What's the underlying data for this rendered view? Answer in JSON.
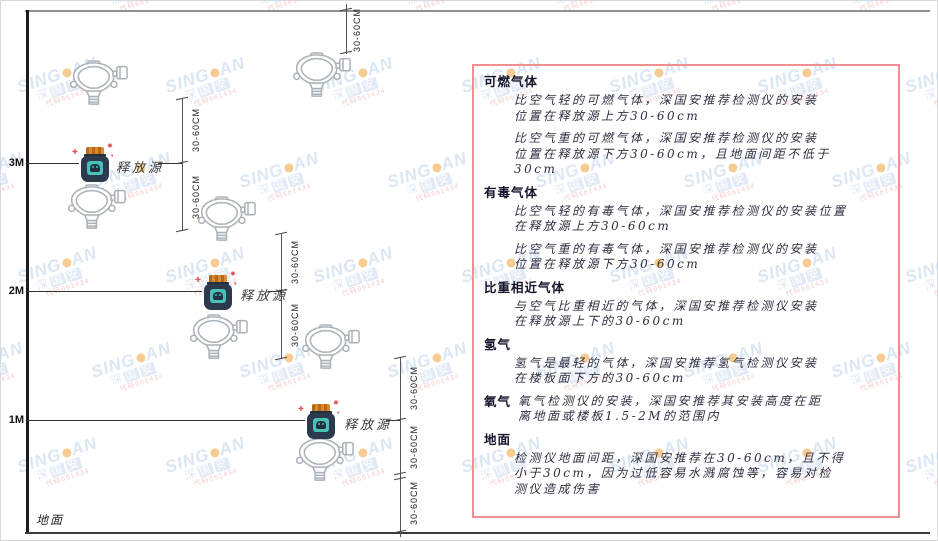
{
  "watermark": {
    "brand_prefix": "SING",
    "brand_suffix": "AN",
    "cjk": "深国安",
    "code": "代码661434",
    "blue": "#bfd3ea",
    "orange": "#f2a33c"
  },
  "colors": {
    "panel_border": "#ef8f8f",
    "jar_body": "#2c3a4e",
    "jar_cap": "#d88a2e",
    "jar_label": "#49c0ba",
    "detector_stroke": "#aab1b8"
  },
  "diagram": {
    "levels": [
      {
        "label": "3M"
      },
      {
        "label": "2M"
      },
      {
        "label": "1M"
      }
    ],
    "source_label": "释放源",
    "ground_label": "地面",
    "dim_label": "30-60CM"
  },
  "panel": {
    "sections": [
      {
        "heading": "可燃气体",
        "paragraphs": [
          "比空气轻的可燃气体，深国安推荐检测仪的安装\n位置在释放源上方30-60cm",
          "比空气重的可燃气体，深国安推荐检测仪的安装\n位置在释放源下方30-60cm，且地面间距不低于\n30cm"
        ]
      },
      {
        "heading": "有毒气体",
        "paragraphs": [
          "比空气轻的有毒气体，深国安推荐检测仪的安装位置\n在释放源上方30-60cm",
          "比空气重的有毒气体，深国安推荐检测仪的安装\n位置在释放源下方30-60cm"
        ]
      },
      {
        "heading": "比重相近气体",
        "paragraphs": [
          "与空气比重相近的气体，深国安推荐检测仪安装\n在释放源上下的30-60cm"
        ]
      },
      {
        "heading": "氢气",
        "paragraphs": [
          "氢气是最轻的气体，深国安推荐氢气检测仪安装\n在楼板面下方的30-60cm"
        ]
      },
      {
        "heading": "氧气",
        "inline": true,
        "paragraphs": [
          "氧气检测仪的安装，深国安推荐其安装高度在距\n离地面或楼板1.5-2M的范围内"
        ]
      },
      {
        "heading": "地面",
        "paragraphs": [
          "检测仪地面间距，深国安推荐在30-60cm，且不得\n小于30cm，因为过低容易水溅腐蚀等，容易对检\n测仪造成伤害"
        ]
      }
    ]
  }
}
